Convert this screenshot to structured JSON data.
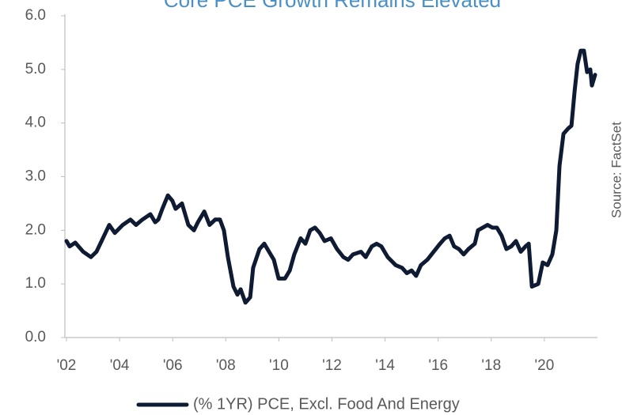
{
  "chart_data": {
    "type": "line",
    "title": "Core PCE Growth Remains Elevated",
    "source": "Source: FactSet",
    "xlim": [
      2002,
      2022
    ],
    "xticks": [
      {
        "value": 2002,
        "label": "'02"
      },
      {
        "value": 2004,
        "label": "'04"
      },
      {
        "value": 2006,
        "label": "'06"
      },
      {
        "value": 2008,
        "label": "'08"
      },
      {
        "value": 2010,
        "label": "'10"
      },
      {
        "value": 2012,
        "label": "'12"
      },
      {
        "value": 2014,
        "label": "'14"
      },
      {
        "value": 2016,
        "label": "'16"
      },
      {
        "value": 2018,
        "label": "'18"
      },
      {
        "value": 2020,
        "label": "'20"
      }
    ],
    "ylim": [
      0,
      6
    ],
    "yticks": [
      {
        "value": 0,
        "label": "0.0"
      },
      {
        "value": 1,
        "label": "1.0"
      },
      {
        "value": 2,
        "label": "2.0"
      },
      {
        "value": 3,
        "label": "3.0"
      },
      {
        "value": 4,
        "label": "4.0"
      },
      {
        "value": 5,
        "label": "5.0"
      },
      {
        "value": 6,
        "label": "6.0"
      }
    ],
    "grid": false,
    "legend": "bottom",
    "x": [
      2002.0,
      2002.12,
      2002.33,
      2002.63,
      2002.92,
      2003.13,
      2003.37,
      2003.61,
      2003.82,
      2004.12,
      2004.41,
      2004.62,
      2004.86,
      2005.16,
      2005.34,
      2005.46,
      2005.61,
      2005.82,
      2005.99,
      2006.11,
      2006.35,
      2006.59,
      2006.8,
      2006.95,
      2007.19,
      2007.39,
      2007.6,
      2007.78,
      2007.93,
      2008.08,
      2008.29,
      2008.44,
      2008.56,
      2008.74,
      2008.92,
      2009.03,
      2009.27,
      2009.45,
      2009.63,
      2009.81,
      2009.99,
      2010.23,
      2010.41,
      2010.58,
      2010.82,
      2011.0,
      2011.18,
      2011.36,
      2011.54,
      2011.72,
      2011.96,
      2012.19,
      2012.43,
      2012.61,
      2012.79,
      2013.09,
      2013.27,
      2013.5,
      2013.68,
      2013.86,
      2014.1,
      2014.4,
      2014.64,
      2014.82,
      2015.0,
      2015.17,
      2015.35,
      2015.59,
      2015.83,
      2016.07,
      2016.25,
      2016.43,
      2016.6,
      2016.78,
      2016.96,
      2017.14,
      2017.38,
      2017.5,
      2017.68,
      2017.86,
      2018.04,
      2018.21,
      2018.39,
      2018.57,
      2018.75,
      2018.93,
      2019.11,
      2019.29,
      2019.41,
      2019.53,
      2019.77,
      2019.94,
      2020.12,
      2020.3,
      2020.45,
      2020.57,
      2020.72,
      2020.9,
      2021.02,
      2021.14,
      2021.25,
      2021.37,
      2021.49,
      2021.61,
      2021.73,
      2021.79,
      2021.91
    ],
    "series": [
      {
        "name": "(% 1YR) PCE, Excl. Food And Energy",
        "color": "#0f1b33",
        "values": [
          1.8,
          1.7,
          1.77,
          1.6,
          1.5,
          1.6,
          1.85,
          2.1,
          1.95,
          2.1,
          2.2,
          2.1,
          2.2,
          2.3,
          2.15,
          2.2,
          2.4,
          2.65,
          2.55,
          2.4,
          2.5,
          2.1,
          2.0,
          2.15,
          2.35,
          2.1,
          2.2,
          2.2,
          2.0,
          1.5,
          0.95,
          0.8,
          0.9,
          0.65,
          0.75,
          1.3,
          1.65,
          1.75,
          1.6,
          1.45,
          1.1,
          1.1,
          1.25,
          1.55,
          1.85,
          1.75,
          2.0,
          2.05,
          1.95,
          1.8,
          1.85,
          1.65,
          1.5,
          1.45,
          1.55,
          1.6,
          1.5,
          1.7,
          1.75,
          1.7,
          1.5,
          1.35,
          1.3,
          1.2,
          1.25,
          1.15,
          1.35,
          1.45,
          1.6,
          1.75,
          1.85,
          1.9,
          1.7,
          1.65,
          1.55,
          1.65,
          1.75,
          2.0,
          2.05,
          2.1,
          2.05,
          2.05,
          1.9,
          1.65,
          1.7,
          1.8,
          1.6,
          1.7,
          1.75,
          0.95,
          1.0,
          1.4,
          1.35,
          1.55,
          2.0,
          3.2,
          3.8,
          3.9,
          3.95,
          4.6,
          5.1,
          5.35,
          5.35,
          4.95,
          5.0,
          4.7,
          4.9
        ]
      }
    ]
  }
}
